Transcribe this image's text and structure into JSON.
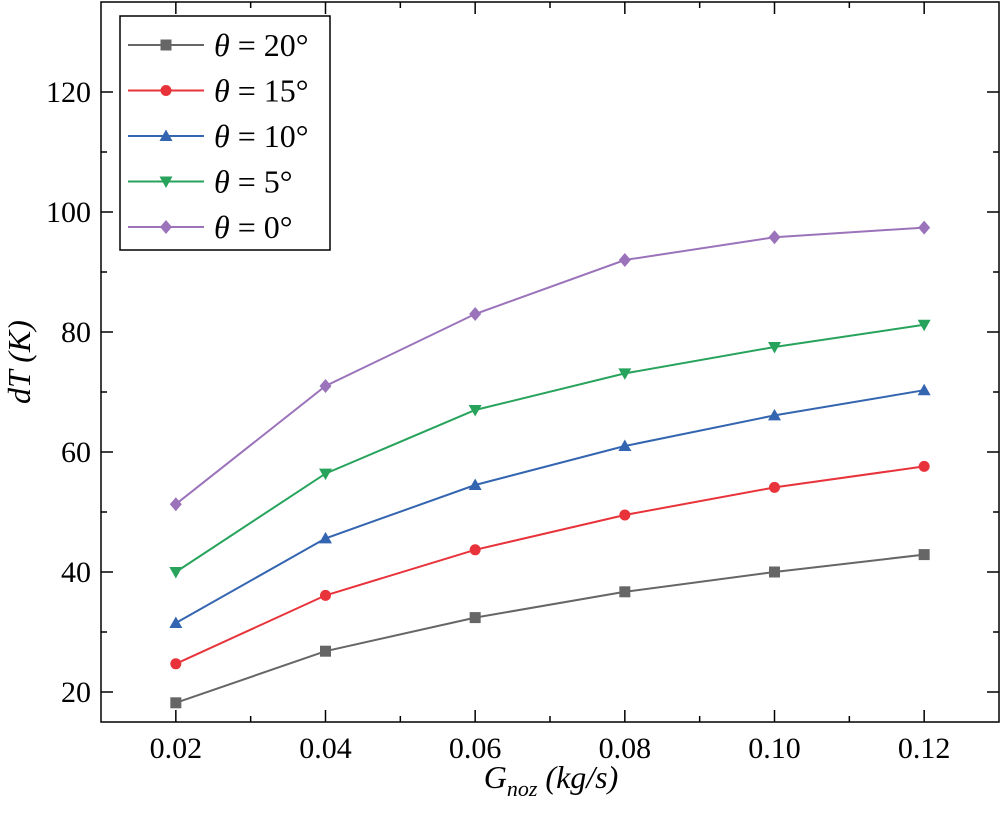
{
  "chart_data": {
    "type": "line",
    "xlabel_main": "G",
    "xlabel_sub": "noz",
    "xlabel_units": " (kg/s)",
    "ylabel": "dT (K)",
    "x": [
      0.02,
      0.04,
      0.06,
      0.08,
      0.1,
      0.12
    ],
    "x_tick_labels": [
      "0.02",
      "0.04",
      "0.06",
      "0.08",
      "0.10",
      "0.12"
    ],
    "xlim": [
      0.01,
      0.13
    ],
    "y_ticks": [
      20,
      40,
      60,
      80,
      100,
      120
    ],
    "y_tick_labels": [
      "20",
      "40",
      "60",
      "80",
      "100",
      "120"
    ],
    "ylim": [
      15,
      135
    ],
    "grid": false,
    "legend_position": "top-left",
    "series": [
      {
        "symbol": "θ",
        "rest": " = 20°",
        "color": "#666666",
        "marker": "square",
        "values": [
          18.2,
          26.8,
          32.4,
          36.7,
          40.0,
          42.9
        ]
      },
      {
        "symbol": "θ",
        "rest": " = 15°",
        "color": "#e8333b",
        "marker": "circle",
        "values": [
          24.7,
          36.1,
          43.7,
          49.5,
          54.1,
          57.6
        ]
      },
      {
        "symbol": "θ",
        "rest": " = 10°",
        "color": "#3465b0",
        "marker": "triangle-up",
        "values": [
          31.5,
          45.6,
          54.5,
          61.0,
          66.1,
          70.3
        ]
      },
      {
        "symbol": "θ",
        "rest": " = 5°",
        "color": "#27a35c",
        "marker": "triangle-down",
        "values": [
          40.0,
          56.4,
          67.0,
          73.1,
          77.5,
          81.2
        ]
      },
      {
        "symbol": "θ",
        "rest": " = 0°",
        "color": "#9b73bb",
        "marker": "diamond",
        "values": [
          51.3,
          71.0,
          83.0,
          92.0,
          95.8,
          97.4
        ]
      }
    ]
  }
}
